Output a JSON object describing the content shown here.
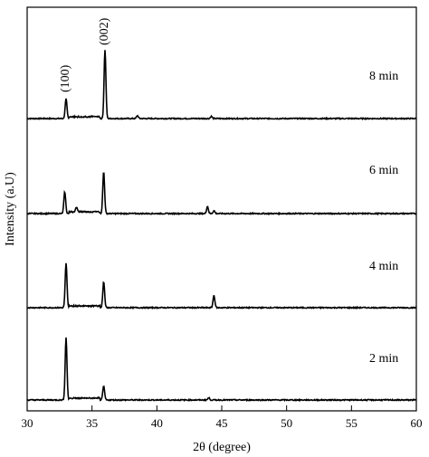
{
  "chart_data": {
    "type": "line",
    "xlabel": "2θ (degree)",
    "ylabel": "Intensity (a.U)",
    "xlim": [
      30,
      60
    ],
    "xticks": [
      30,
      35,
      40,
      45,
      50,
      55,
      60
    ],
    "series": [
      {
        "name": "8 min",
        "peaks": [
          {
            "x": 33.0,
            "height": 0.27
          },
          {
            "x": 36.0,
            "height": 0.95
          },
          {
            "x": 38.5,
            "height": 0.04
          },
          {
            "x": 44.2,
            "height": 0.03
          }
        ]
      },
      {
        "name": "6 min",
        "peaks": [
          {
            "x": 32.9,
            "height": 0.3
          },
          {
            "x": 33.8,
            "height": 0.06
          },
          {
            "x": 35.9,
            "height": 0.58
          },
          {
            "x": 43.9,
            "height": 0.1
          },
          {
            "x": 44.4,
            "height": 0.04
          }
        ]
      },
      {
        "name": "4 min",
        "peaks": [
          {
            "x": 33.0,
            "height": 0.61
          },
          {
            "x": 35.9,
            "height": 0.36
          },
          {
            "x": 44.4,
            "height": 0.17
          }
        ]
      },
      {
        "name": "2 min",
        "peaks": [
          {
            "x": 33.0,
            "height": 0.86
          },
          {
            "x": 35.9,
            "height": 0.19
          },
          {
            "x": 44.0,
            "height": 0.03
          }
        ]
      }
    ],
    "annotations": [
      {
        "text": "(100)",
        "x": 33.0
      },
      {
        "text": "(002)",
        "x": 36.0
      }
    ]
  }
}
